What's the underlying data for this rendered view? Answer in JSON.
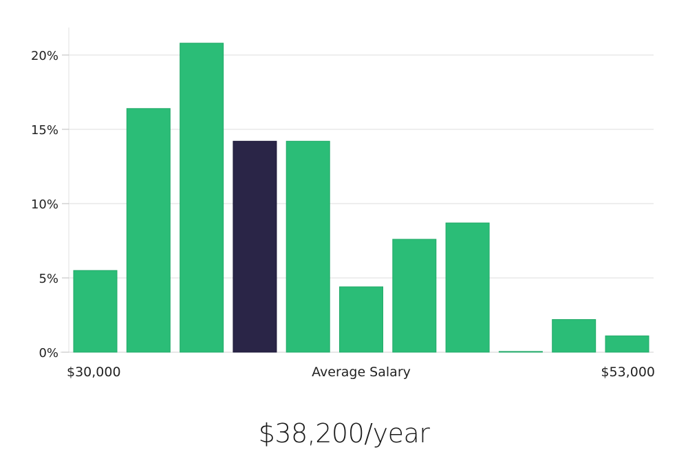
{
  "chart_data": {
    "type": "bar",
    "title": "",
    "xlabel": "Average Salary",
    "x_min_label": "$30,000",
    "x_max_label": "$53,000",
    "ylabel": "",
    "ylim": [
      0,
      22
    ],
    "yticks": [
      0,
      5,
      10,
      15,
      20
    ],
    "ytick_labels": [
      "0%",
      "5%",
      "10%",
      "15%",
      "20%"
    ],
    "grid": true,
    "values": [
      5.5,
      16.4,
      20.8,
      14.2,
      14.2,
      4.4,
      7.6,
      8.7,
      0.05,
      2.2,
      1.1
    ],
    "highlight_index": 3,
    "bar_color": "#2bbd77",
    "highlight_color": "#2a2547"
  },
  "salary_label": "$38,200/year"
}
